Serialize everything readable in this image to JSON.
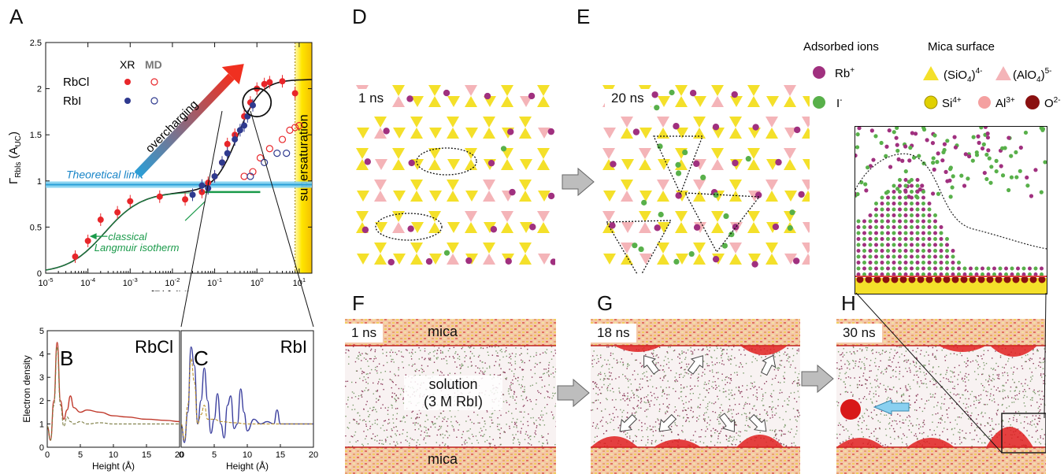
{
  "panels": {
    "A": "A",
    "B": "B",
    "C": "C",
    "D": "D",
    "E": "E",
    "F": "F",
    "G": "G",
    "H": "H"
  },
  "chart_data": [
    {
      "type": "scatter",
      "panel": "A",
      "xlabel": "[Rb] (M)",
      "ylabel": "Γ_Rb_ls (A_UC)",
      "xscale": "log",
      "xlim": [
        1e-05,
        20
      ],
      "ylim": [
        0,
        2.5
      ],
      "xtick_labels": [
        "10-5",
        "10-4",
        "10-3",
        "10-2",
        "10-1",
        "100",
        "101"
      ],
      "ytick_labels": [
        "0",
        "0.5",
        "1",
        "1.5",
        "2",
        "2.5"
      ],
      "legend_header_xr": "XR",
      "legend_header_md": "MD",
      "series": [
        {
          "name": "RbCl",
          "method": "XR",
          "color": "#e8262a",
          "x": [
            5e-05,
            0.0001,
            0.0002,
            0.0005,
            0.001,
            0.005,
            0.02,
            0.05,
            0.07,
            0.1,
            0.15,
            0.2,
            0.3,
            0.5,
            0.7,
            1.0,
            1.5,
            2.0,
            4.0,
            8.0
          ],
          "y": [
            0.18,
            0.35,
            0.58,
            0.66,
            0.78,
            0.83,
            0.8,
            0.88,
            0.98,
            1.05,
            1.2,
            1.4,
            1.5,
            1.7,
            1.85,
            2.0,
            2.05,
            2.07,
            2.08,
            1.95
          ]
        },
        {
          "name": "RbI",
          "method": "XR",
          "color": "#2f3a8f",
          "x": [
            0.03,
            0.05,
            0.07,
            0.1,
            0.15,
            0.2,
            0.3,
            0.4,
            0.5,
            0.6,
            0.8
          ],
          "y": [
            0.85,
            0.95,
            0.92,
            1.05,
            1.2,
            1.3,
            1.45,
            1.55,
            1.6,
            1.7,
            1.82
          ]
        },
        {
          "name": "RbCl",
          "method": "MD",
          "color": "#e8262a",
          "x": [
            0.5,
            0.8,
            1.2,
            2.0,
            4.0,
            6.0,
            8.0,
            10.0
          ],
          "y": [
            1.05,
            1.1,
            1.25,
            1.35,
            1.45,
            1.55,
            1.58,
            1.6
          ]
        },
        {
          "name": "RbI",
          "method": "MD",
          "color": "#2f3a8f",
          "x": [
            0.7,
            1.5,
            3.0,
            5.0
          ],
          "y": [
            1.05,
            1.2,
            1.3,
            1.3
          ]
        }
      ],
      "annotations": {
        "theoretical_limit": "Theoretical limit",
        "theoretical_limit_y": 0.96,
        "overcharging": "overcharging",
        "classical_line1": "classical",
        "classical_line2": "Langmuir isotherm",
        "classical_y": 0.88,
        "supersaturation": "supersaturation"
      }
    },
    {
      "type": "line",
      "panel": "B",
      "title": "RbCl",
      "xlabel": "Height (Å)",
      "ylabel": "Electron density",
      "xlim": [
        0,
        20
      ],
      "ylim": [
        0,
        5
      ],
      "xtick_labels": [
        "0",
        "5",
        "10",
        "15",
        "20"
      ],
      "ytick_labels": [
        "0",
        "1",
        "2",
        "3",
        "4",
        "5"
      ],
      "series": [
        {
          "color": "#c0392b",
          "x": [
            0,
            0.5,
            1,
            1.5,
            2,
            2.5,
            3,
            3.5,
            4,
            5,
            6,
            8,
            10,
            12,
            15,
            18,
            20
          ],
          "y": [
            0.9,
            0.3,
            2.0,
            4.5,
            2.0,
            1.2,
            1.6,
            2.2,
            1.7,
            1.5,
            1.6,
            1.5,
            1.35,
            1.3,
            1.2,
            1.15,
            1.1
          ]
        },
        {
          "color": "#7a7a40",
          "x": [
            0,
            0.5,
            1,
            1.5,
            2,
            2.5,
            3,
            3.5,
            4,
            5,
            6,
            8,
            10,
            12,
            15,
            18,
            20
          ],
          "y": [
            0.9,
            0.3,
            1.8,
            4.3,
            1.8,
            0.9,
            1.3,
            1.1,
            1.0,
            1.1,
            1.0,
            1.05,
            1.0,
            1.0,
            1.0,
            1.0,
            1.0
          ]
        }
      ]
    },
    {
      "type": "line",
      "panel": "C",
      "title": "RbI",
      "xlabel": "Height (Å)",
      "xlim": [
        0,
        20
      ],
      "ylim": [
        0,
        5
      ],
      "xtick_labels": [
        "0",
        "5",
        "10",
        "15",
        "20"
      ],
      "series": [
        {
          "color": "#3b3f9e",
          "x": [
            0,
            0.5,
            1,
            1.5,
            2,
            2.5,
            3,
            3.5,
            4,
            4.5,
            5,
            5.5,
            6,
            6.5,
            7,
            7.5,
            8,
            8.5,
            9,
            9.5,
            10,
            11,
            12,
            13,
            14,
            14.5,
            15,
            16,
            18,
            20
          ],
          "y": [
            1.0,
            0.2,
            1.5,
            4.3,
            3.5,
            1.0,
            2.0,
            3.4,
            2.0,
            0.6,
            1.2,
            2.3,
            1.0,
            0.4,
            1.8,
            2.2,
            0.8,
            1.0,
            2.5,
            1.5,
            0.7,
            1.2,
            1.0,
            1.1,
            1.0,
            1.6,
            1.0,
            1.0,
            1.0,
            1.0
          ]
        },
        {
          "color": "#b8902a",
          "x": [
            0,
            0.5,
            1,
            1.5,
            2,
            2.5,
            3,
            3.5,
            4,
            5,
            6,
            8,
            10,
            12,
            15,
            18,
            20
          ],
          "y": [
            1.0,
            0.3,
            1.8,
            3.8,
            2.8,
            1.0,
            1.4,
            1.8,
            1.2,
            1.2,
            1.1,
            1.05,
            1.0,
            1.0,
            1.0,
            1.0,
            1.0
          ]
        }
      ]
    }
  ],
  "D": {
    "time": "1 ns"
  },
  "E": {
    "time": "20 ns"
  },
  "legend": {
    "adsorbed_header": "Adsorbed ions",
    "mica_header": "Mica surface",
    "rb": "Rb",
    "rb_sup": "+",
    "i": "I",
    "i_sup": "-",
    "sio4": "(SiO",
    "sio4_sub": "4",
    "sio4_close": ")",
    "sio4_sup": "4-",
    "alo4": "(AlO",
    "alo4_sub": "4",
    "alo4_close": ")",
    "alo4_sup": "5-",
    "si": "Si",
    "si_sup": "4+",
    "al": "Al",
    "al_sup": "3+",
    "o": "O",
    "o_sup": "2-"
  },
  "F": {
    "time": "1 ns",
    "mica_top": "mica",
    "solution_line1": "solution",
    "solution_line2": "(3 M RbI)",
    "mica_bottom": "mica"
  },
  "G": {
    "time": "18 ns"
  },
  "H": {
    "time": "30 ns"
  },
  "colors": {
    "rb": "#a0307f",
    "i": "#58b04a",
    "sio4": "#f4e02a",
    "alo4": "#f4b4b8",
    "o": "#8a1010",
    "al": "#f08a8a",
    "si": "#e0d000"
  }
}
